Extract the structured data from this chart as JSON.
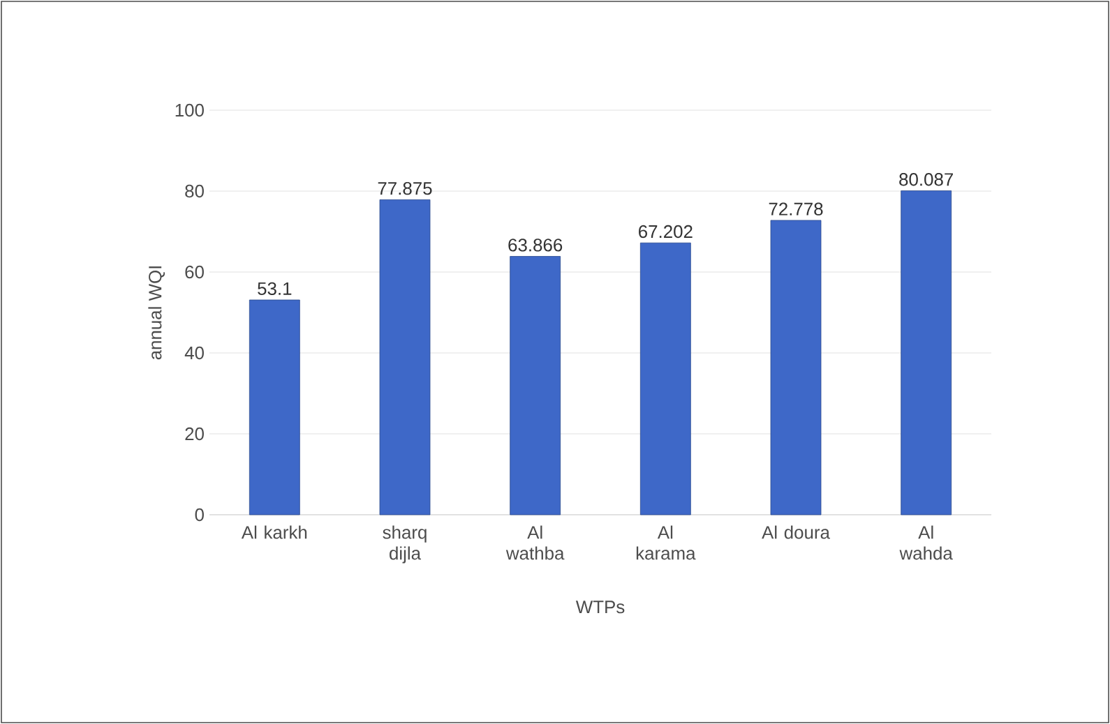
{
  "chart_data": {
    "type": "bar",
    "xlabel": "WTPs",
    "ylabel": "annual WQI",
    "categories": [
      "Al karkh",
      "sharq dijla",
      "Al wathba",
      "Al karama",
      "Al doura",
      "Al wahda"
    ],
    "values": [
      53.1,
      77.875,
      63.866,
      67.202,
      72.778,
      80.087
    ],
    "color": "#3e68c8",
    "ylim": [
      0,
      100
    ],
    "yticks": [
      0,
      20,
      40,
      60,
      80,
      100
    ],
    "grid": "y",
    "data_labels": true
  }
}
